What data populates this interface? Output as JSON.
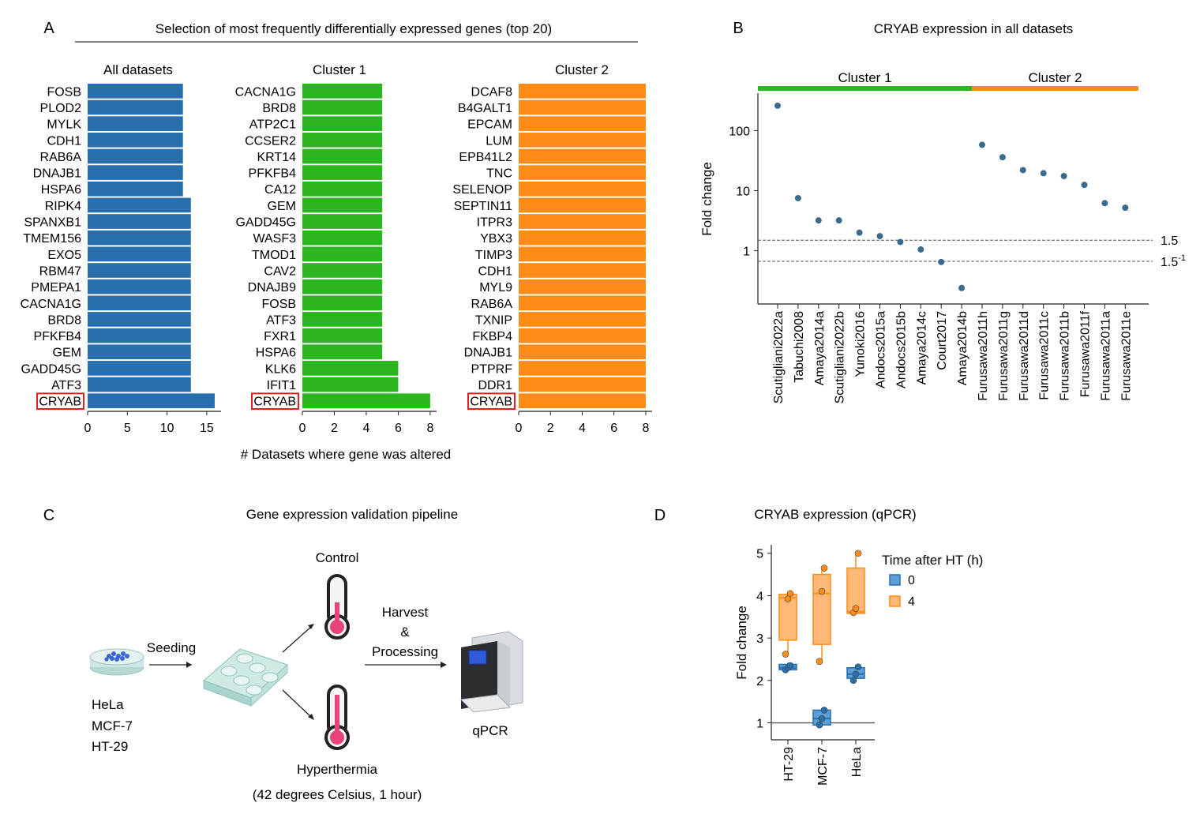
{
  "colors": {
    "blue": "#2a6fad",
    "green": "#2bb51e",
    "orange": "#ff8c17",
    "cluster1": "#2bb51e",
    "cluster2": "#ff8c17",
    "highlight": "#e02020",
    "point": "#3a6a8c",
    "box_blue": "#5aa0d6",
    "box_orange": "#ffb878"
  },
  "panel_a": {
    "letter": "A",
    "title": "Selection of most frequently differentially expressed genes (top 20)",
    "xlabel": "# Datasets where gene was altered",
    "highlight_gene": "CRYAB"
  },
  "panel_b": {
    "letter": "B",
    "title": "CRYAB expression in all datasets"
  },
  "panel_c": {
    "letter": "C",
    "title": "Gene expression validation pipeline",
    "cell_lines": [
      "HeLa",
      "MCF-7",
      "HT-29"
    ],
    "seeding": "Seeding",
    "control": "Control",
    "harvest": [
      "Harvest",
      "&",
      "Processing"
    ],
    "qpcr": "qPCR",
    "hyperthermia": "Hyperthermia",
    "conditions": "(42 degrees Celsius, 1 hour)",
    "icons": [
      "petri-dish-icon",
      "well-plate-icon",
      "thermometer-icon",
      "thermometer-icon",
      "qpcr-machine-icon"
    ]
  },
  "panel_d": {
    "letter": "D",
    "title": "CRYAB expression (qPCR)"
  },
  "chart_data": [
    {
      "type": "bar",
      "orientation": "horizontal",
      "title": "All datasets",
      "color": "#2a6fad",
      "categories": [
        "FOSB",
        "PLOD2",
        "MYLK",
        "CDH1",
        "RAB6A",
        "DNAJB1",
        "HSPA6",
        "RIPK4",
        "SPANXB1",
        "TMEM156",
        "EXO5",
        "RBM47",
        "PMEPA1",
        "CACNA1G",
        "BRD8",
        "PFKFB4",
        "GEM",
        "GADD45G",
        "ATF3",
        "CRYAB"
      ],
      "values": [
        12,
        12,
        12,
        12,
        12,
        12,
        12,
        13,
        13,
        13,
        13,
        13,
        13,
        13,
        13,
        13,
        13,
        13,
        13,
        16
      ],
      "xlim": [
        0,
        16.8
      ],
      "xticks": [
        0,
        5,
        10,
        15
      ],
      "xlabel": "# Datasets where gene was altered"
    },
    {
      "type": "bar",
      "orientation": "horizontal",
      "title": "Cluster 1",
      "color": "#2bb51e",
      "categories": [
        "CACNA1G",
        "BRD8",
        "ATP2C1",
        "CCSER2",
        "KRT14",
        "PFKFB4",
        "CA12",
        "GEM",
        "GADD45G",
        "WASF3",
        "TMOD1",
        "CAV2",
        "DNAJB9",
        "FOSB",
        "ATF3",
        "FXR1",
        "HSPA6",
        "KLK6",
        "IFIT1",
        "CRYAB"
      ],
      "values": [
        5,
        5,
        5,
        5,
        5,
        5,
        5,
        5,
        5,
        5,
        5,
        5,
        5,
        5,
        5,
        5,
        5,
        6,
        6,
        8
      ],
      "xlim": [
        0,
        8.4
      ],
      "xticks": [
        0,
        2,
        4,
        6,
        8
      ],
      "xlabel": "# Datasets where gene was altered"
    },
    {
      "type": "bar",
      "orientation": "horizontal",
      "title": "Cluster 2",
      "color": "#ff8c17",
      "categories": [
        "DCAF8",
        "B4GALT1",
        "EPCAM",
        "LUM",
        "EPB41L2",
        "TNC",
        "SELENOP",
        "SEPTIN11",
        "ITPR3",
        "YBX3",
        "TIMP3",
        "CDH1",
        "MYL9",
        "RAB6A",
        "TXNIP",
        "FKBP4",
        "DNAJB1",
        "PTPRF",
        "DDR1",
        "CRYAB"
      ],
      "values": [
        8,
        8,
        8,
        8,
        8,
        8,
        8,
        8,
        8,
        8,
        8,
        8,
        8,
        8,
        8,
        8,
        8,
        8,
        8,
        8
      ],
      "xlim": [
        0,
        8.4
      ],
      "xticks": [
        0,
        2,
        4,
        6,
        8
      ],
      "xlabel": "# Datasets where gene was altered"
    },
    {
      "type": "scatter",
      "title": "CRYAB expression in all datasets",
      "yscale": "log",
      "ylabel": "Fold change",
      "ylim": [
        0.13,
        420
      ],
      "yticks": [
        1,
        10,
        100
      ],
      "yticklabels": [
        "1",
        "10",
        "100"
      ],
      "hlines": [
        {
          "value": 1.5,
          "label": "1.5"
        },
        {
          "value": 0.667,
          "label": "1.5",
          "label_sup": "-1"
        }
      ],
      "groups": [
        {
          "name": "Cluster 1",
          "color": "#2bb51e",
          "from": 0,
          "to": 9
        },
        {
          "name": "Cluster 2",
          "color": "#ff8c17",
          "from": 10,
          "to": 17
        }
      ],
      "x": [
        "Scutigliani2022a",
        "Tabuchi2008",
        "Amaya2014a",
        "Scutigliani2022b",
        "Yunoki2016",
        "Andocs2015a",
        "Andocs2015b",
        "Amaya2014c",
        "Court2017",
        "Amaya2014b",
        "Furusawa2011h",
        "Furusawa2011g",
        "Furusawa2011d",
        "Furusawa2011c",
        "Furusawa2011b",
        "Furusawa2011f",
        "Furusawa2011a",
        "Furusawa2011e"
      ],
      "y": [
        260,
        7.5,
        3.2,
        3.2,
        2.0,
        1.75,
        1.4,
        1.05,
        0.65,
        0.24,
        58,
        36,
        22,
        19.5,
        17.5,
        12.5,
        6.2,
        5.2
      ]
    },
    {
      "type": "box",
      "title": "CRYAB expression (qPCR)",
      "ylabel": "Fold change",
      "categories": [
        "HT-29",
        "MCF-7",
        "HeLa"
      ],
      "ylim": [
        0.6,
        5.2
      ],
      "yticks": [
        1,
        2,
        3,
        4,
        5
      ],
      "hline": 1,
      "legend_title": "Time after HT (h)",
      "legend_placement": "top-right",
      "series": [
        {
          "name": "0",
          "color": "#2a6fad",
          "boxes": [
            {
              "min": 2.22,
              "q1": 2.25,
              "median": 2.3,
              "q3": 2.38,
              "max": 2.42,
              "points": [
                2.25,
                2.3,
                2.35
              ]
            },
            {
              "min": 0.9,
              "q1": 0.95,
              "median": 1.1,
              "q3": 1.3,
              "max": 1.35,
              "points": [
                0.95,
                1.1,
                1.3
              ]
            },
            {
              "min": 1.97,
              "q1": 2.05,
              "median": 2.15,
              "q3": 2.3,
              "max": 2.35,
              "points": [
                2.0,
                2.15,
                2.32
              ]
            }
          ]
        },
        {
          "name": "4",
          "color": "#ff8c17",
          "boxes": [
            {
              "min": 2.6,
              "q1": 2.95,
              "median": 3.95,
              "q3": 4.03,
              "max": 4.07,
              "points": [
                2.62,
                3.92,
                4.05
              ]
            },
            {
              "min": 2.45,
              "q1": 2.85,
              "median": 4.05,
              "q3": 4.5,
              "max": 4.65,
              "points": [
                2.45,
                4.1,
                4.65
              ]
            },
            {
              "min": 3.55,
              "q1": 3.58,
              "median": 3.62,
              "q3": 4.65,
              "max": 5.0,
              "points": [
                3.6,
                3.7,
                5.0
              ]
            }
          ]
        }
      ]
    }
  ]
}
